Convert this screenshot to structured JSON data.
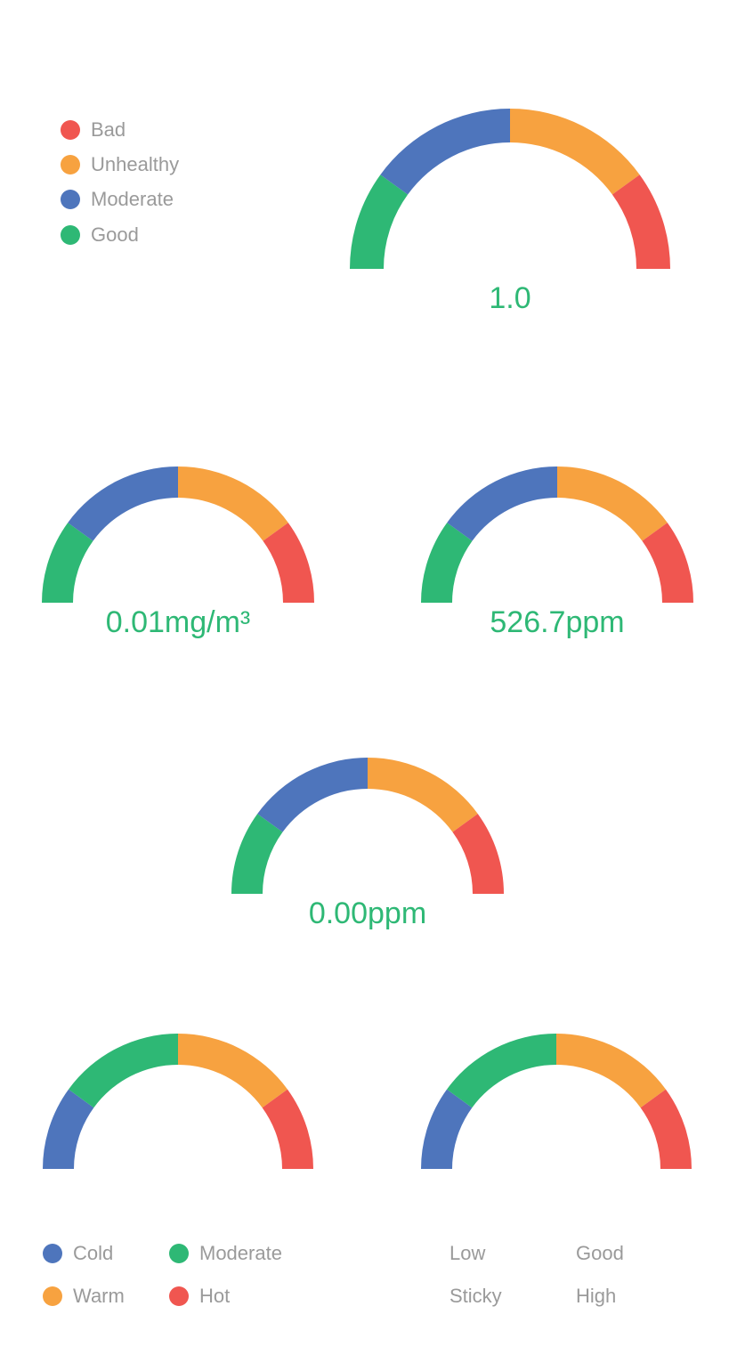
{
  "colors": {
    "good": "#2eb875",
    "moderate": "#4e75bc",
    "unhealthy": "#f7a240",
    "bad": "#f05650",
    "cold": "#4e75bc",
    "warm": "#f7a240",
    "hot": "#f05650",
    "value_text": "#2eb875",
    "legend_text": "#9a9a9a"
  },
  "legend_air": {
    "items": [
      {
        "label": "Bad",
        "color": "#f05650"
      },
      {
        "label": "Unhealthy",
        "color": "#f7a240"
      },
      {
        "label": "Moderate",
        "color": "#4e75bc"
      },
      {
        "label": "Good",
        "color": "#2eb875"
      }
    ]
  },
  "legend_temp": {
    "items": [
      {
        "label": "Cold",
        "color": "#4e75bc"
      },
      {
        "label": "Moderate",
        "color": "#2eb875"
      },
      {
        "label": "Warm",
        "color": "#f7a240"
      },
      {
        "label": "Hot",
        "color": "#f05650"
      }
    ]
  },
  "legend_humidity": {
    "items": [
      {
        "label": "Low"
      },
      {
        "label": "Good"
      },
      {
        "label": "Sticky"
      },
      {
        "label": "High"
      }
    ]
  },
  "chart_data": [
    {
      "type": "gauge",
      "value_label": "1.0",
      "segments": [
        {
          "name": "Good",
          "color": "#2eb875",
          "fraction": 0.2
        },
        {
          "name": "Moderate",
          "color": "#4e75bc",
          "fraction": 0.3
        },
        {
          "name": "Unhealthy",
          "color": "#f7a240",
          "fraction": 0.3
        },
        {
          "name": "Bad",
          "color": "#f05650",
          "fraction": 0.2
        }
      ]
    },
    {
      "type": "gauge",
      "value_label": "0.01mg/m³",
      "segments": [
        {
          "name": "Good",
          "color": "#2eb875",
          "fraction": 0.2
        },
        {
          "name": "Moderate",
          "color": "#4e75bc",
          "fraction": 0.3
        },
        {
          "name": "Unhealthy",
          "color": "#f7a240",
          "fraction": 0.3
        },
        {
          "name": "Bad",
          "color": "#f05650",
          "fraction": 0.2
        }
      ]
    },
    {
      "type": "gauge",
      "value_label": "526.7ppm",
      "segments": [
        {
          "name": "Good",
          "color": "#2eb875",
          "fraction": 0.2
        },
        {
          "name": "Moderate",
          "color": "#4e75bc",
          "fraction": 0.3
        },
        {
          "name": "Unhealthy",
          "color": "#f7a240",
          "fraction": 0.3
        },
        {
          "name": "Bad",
          "color": "#f05650",
          "fraction": 0.2
        }
      ]
    },
    {
      "type": "gauge",
      "value_label": "0.00ppm",
      "segments": [
        {
          "name": "Good",
          "color": "#2eb875",
          "fraction": 0.2
        },
        {
          "name": "Moderate",
          "color": "#4e75bc",
          "fraction": 0.3
        },
        {
          "name": "Unhealthy",
          "color": "#f7a240",
          "fraction": 0.3
        },
        {
          "name": "Bad",
          "color": "#f05650",
          "fraction": 0.2
        }
      ]
    },
    {
      "type": "gauge",
      "value_label": "",
      "segments": [
        {
          "name": "Cold",
          "color": "#4e75bc",
          "fraction": 0.2
        },
        {
          "name": "Moderate",
          "color": "#2eb875",
          "fraction": 0.3
        },
        {
          "name": "Warm",
          "color": "#f7a240",
          "fraction": 0.3
        },
        {
          "name": "Hot",
          "color": "#f05650",
          "fraction": 0.2
        }
      ]
    },
    {
      "type": "gauge",
      "value_label": "",
      "segments": [
        {
          "name": "Low",
          "color": "#4e75bc",
          "fraction": 0.2
        },
        {
          "name": "Good",
          "color": "#2eb875",
          "fraction": 0.3
        },
        {
          "name": "Sticky",
          "color": "#f7a240",
          "fraction": 0.3
        },
        {
          "name": "High",
          "color": "#f05650",
          "fraction": 0.2
        }
      ]
    }
  ]
}
